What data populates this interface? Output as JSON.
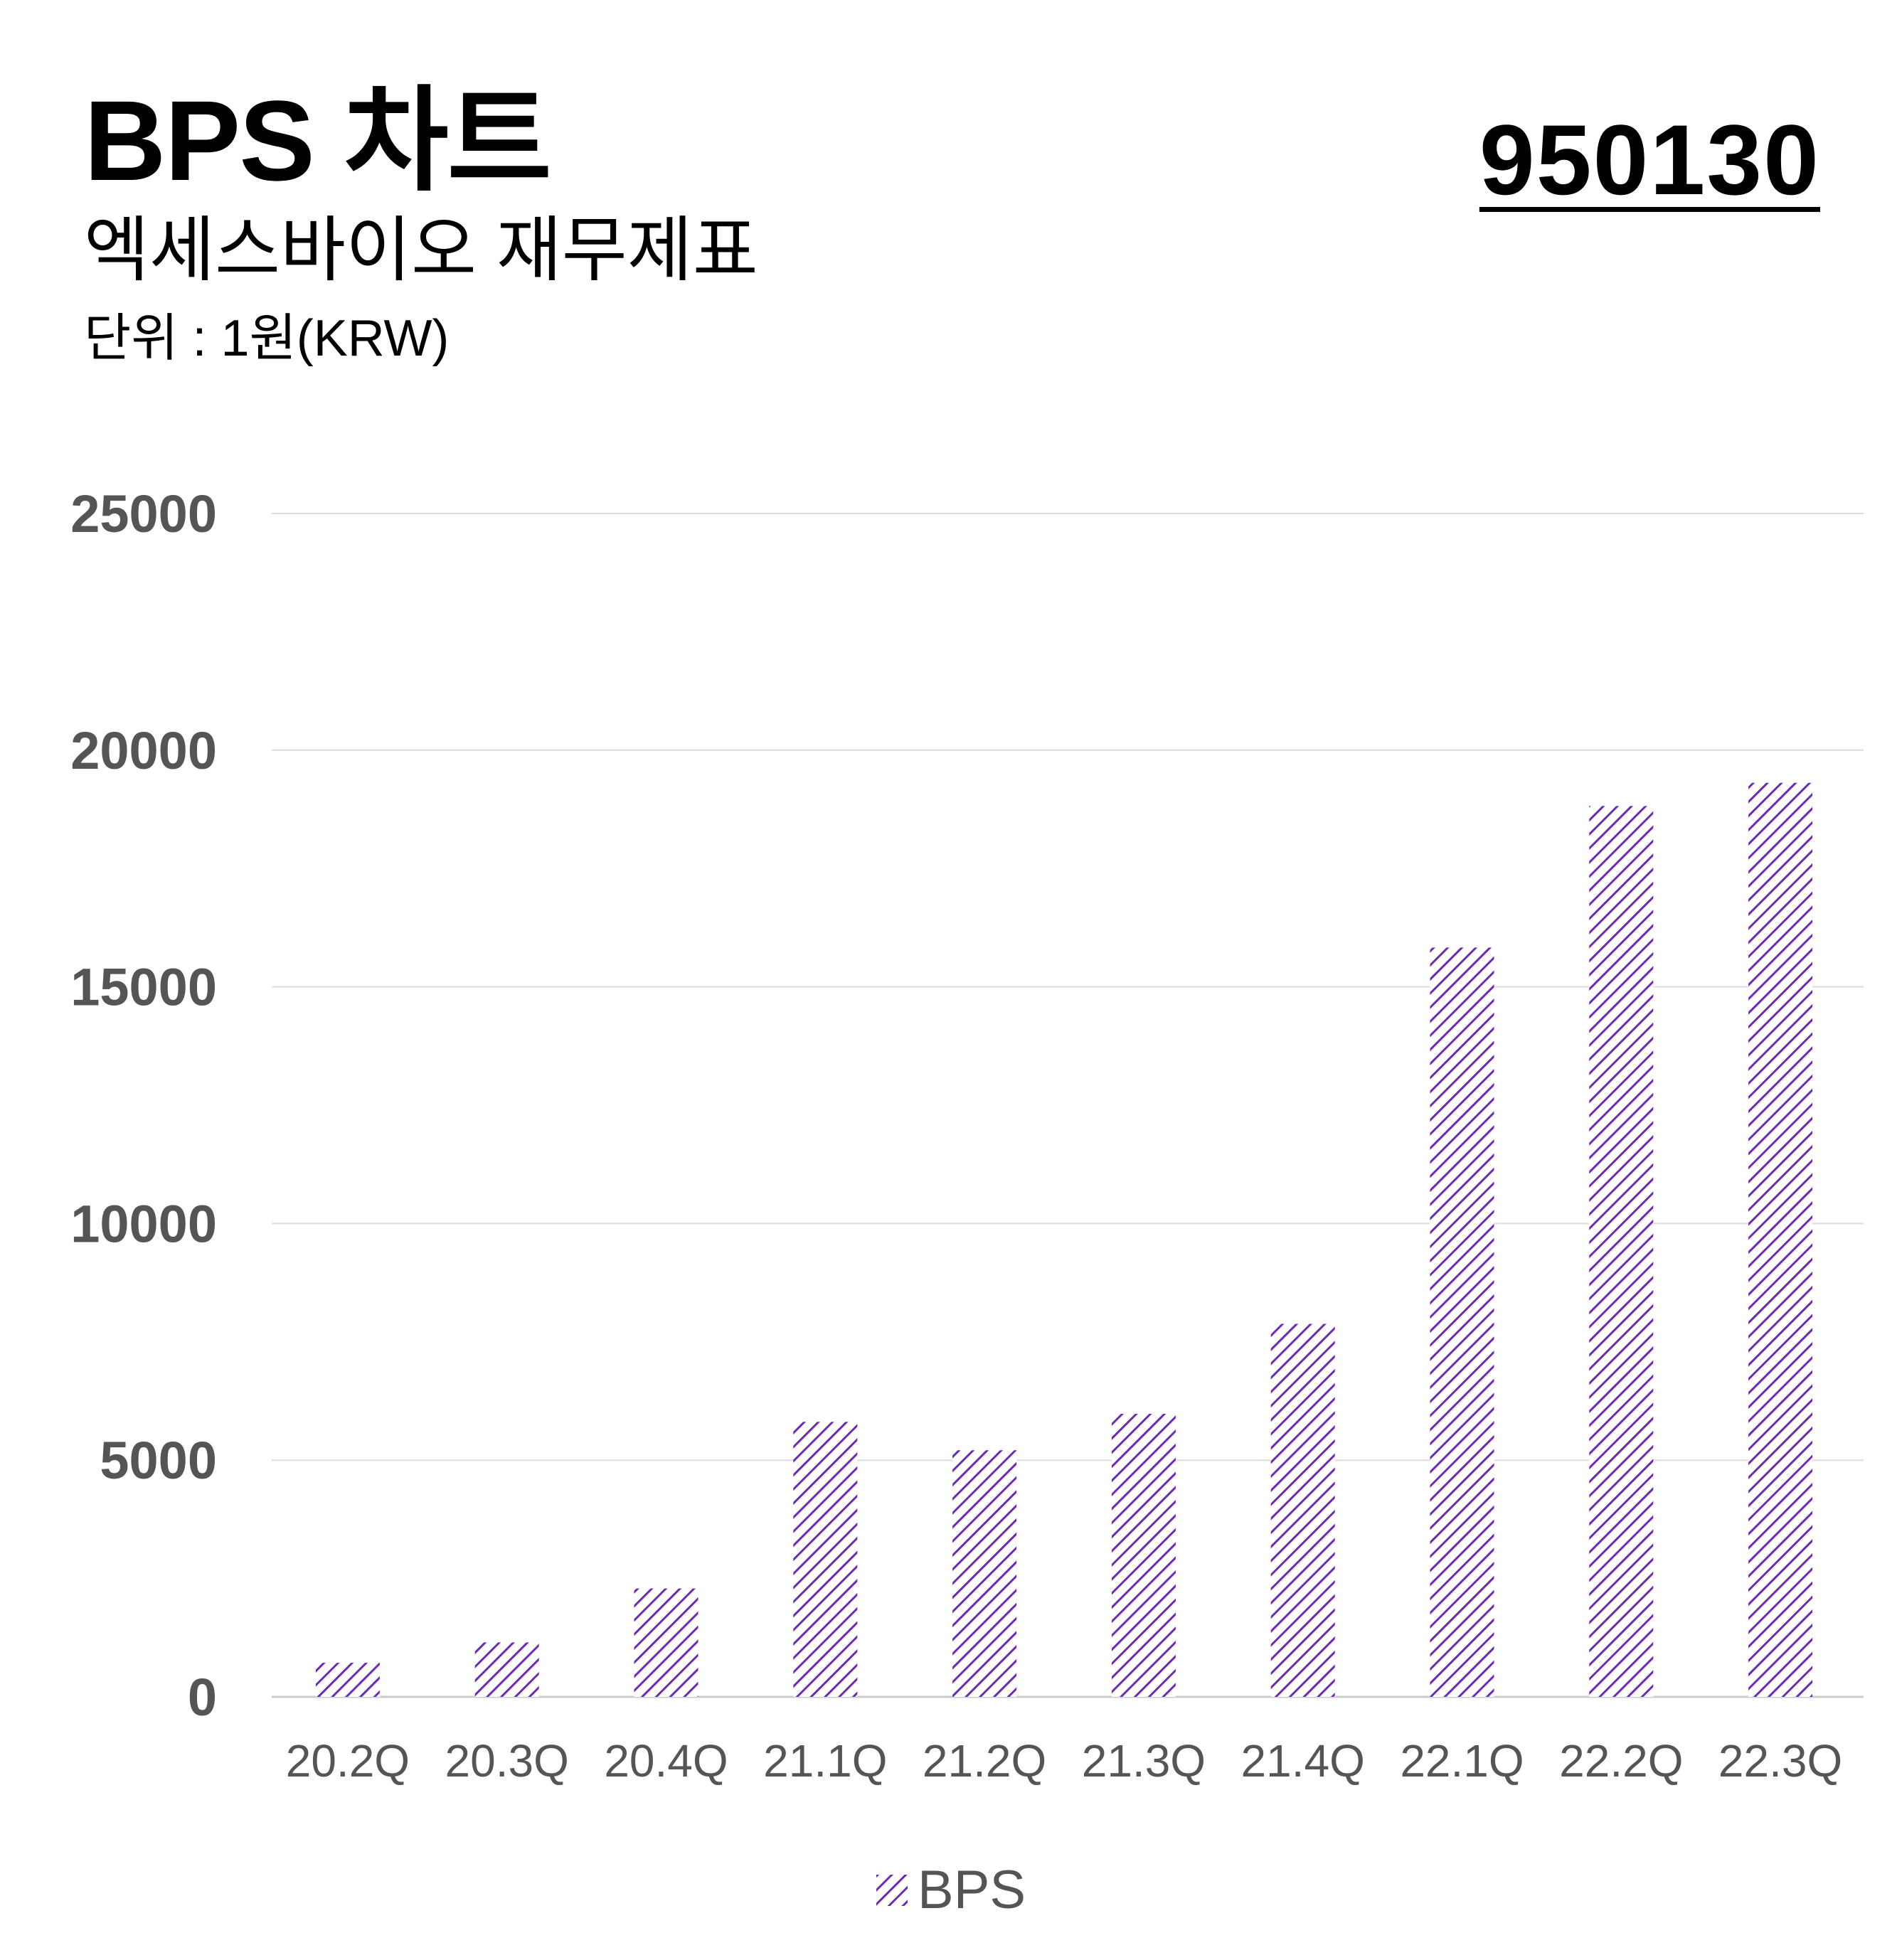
{
  "header": {
    "title": "BPS 차트",
    "subtitle": "엑세스바이오 재무제표",
    "unit": "단위 : 1원(KRW)",
    "code": "950130"
  },
  "colors": {
    "bar": "#6a2bb5",
    "grid": "#dddddd",
    "tick_text": "#555555"
  },
  "chart_data": {
    "type": "bar",
    "categories": [
      "20.2Q",
      "20.3Q",
      "20.4Q",
      "21.1Q",
      "21.2Q",
      "21.3Q",
      "21.4Q",
      "22.1Q",
      "22.2Q",
      "22.3Q"
    ],
    "series": [
      {
        "name": "BPS",
        "values": [
          720,
          1150,
          2290,
          5810,
          5210,
          5980,
          7880,
          15830,
          18820,
          19310
        ],
        "pattern": "diagonal-hatch"
      }
    ],
    "yticks": [
      0,
      5000,
      10000,
      15000,
      20000,
      25000
    ],
    "ylim": [
      0,
      25000
    ],
    "grid": true,
    "legend_position": "bottom-center"
  }
}
